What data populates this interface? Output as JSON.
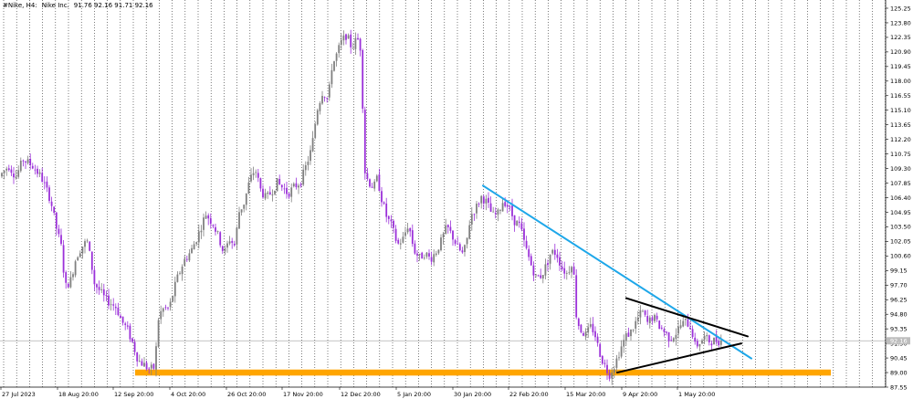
{
  "header": {
    "symbol": "#Nike, H4:",
    "description": "Nike Inc.",
    "ohlc": "91.76 92.16 91.71 92.16"
  },
  "colors": {
    "background": "#ffffff",
    "bull_candle": "#7f7f7f",
    "bear_candle": "#9b30d9",
    "upper_trendline": "#1ea7e9",
    "triangle_lines": "#000000",
    "support_zone": "#ffa500",
    "grid": "#000000",
    "price_line": "#b0b0b0",
    "price_tag": "#bdbdbd"
  },
  "chart_data": {
    "type": "candlestick",
    "ylim": [
      87.55,
      125.25
    ],
    "y_ticks": [
      "125.25",
      "123.80",
      "122.35",
      "120.90",
      "119.45",
      "118.00",
      "116.55",
      "115.10",
      "113.65",
      "112.20",
      "110.75",
      "109.30",
      "107.85",
      "106.40",
      "104.95",
      "103.50",
      "102.05",
      "100.60",
      "99.15",
      "97.70",
      "96.25",
      "94.80",
      "93.35",
      "91.90",
      "90.45",
      "89.00",
      "87.55"
    ],
    "x_ticks": [
      "27 Jul 2023",
      "18 Aug 20:00",
      "12 Sep 20:00",
      "4 Oct 20:00",
      "26 Oct 20:00",
      "17 Nov 20:00",
      "12 Dec 20:00",
      "5 Jan 20:00",
      "30 Jan 20:00",
      "22 Feb 20:00",
      "15 Mar 20:00",
      "9 Apr 20:00",
      "1 May 20:00"
    ],
    "current_price": 92.16,
    "current_price_label": "92.16",
    "grid": "vertical-dotted",
    "path": [
      [
        0,
        108.3
      ],
      [
        12,
        109.6
      ],
      [
        20,
        108.5
      ],
      [
        28,
        110.2
      ],
      [
        38,
        109.6
      ],
      [
        48,
        108.4
      ],
      [
        58,
        106.2
      ],
      [
        64,
        103.5
      ],
      [
        70,
        101.4
      ],
      [
        74,
        97.5
      ],
      [
        80,
        98.2
      ],
      [
        86,
        100.5
      ],
      [
        92,
        101.5
      ],
      [
        98,
        102.1
      ],
      [
        102,
        100.2
      ],
      [
        106,
        97.9
      ],
      [
        112,
        97.1
      ],
      [
        118,
        96.3
      ],
      [
        124,
        95.9
      ],
      [
        130,
        95.5
      ],
      [
        136,
        94.1
      ],
      [
        142,
        93.3
      ],
      [
        148,
        91.9
      ],
      [
        154,
        90.2
      ],
      [
        160,
        89.8
      ],
      [
        166,
        89.3
      ],
      [
        172,
        89.5
      ],
      [
        176,
        94.3
      ],
      [
        180,
        95.3
      ],
      [
        188,
        95.4
      ],
      [
        196,
        98.2
      ],
      [
        204,
        100.1
      ],
      [
        212,
        101.1
      ],
      [
        220,
        102.8
      ],
      [
        228,
        104.8
      ],
      [
        236,
        103.8
      ],
      [
        242,
        102.5
      ],
      [
        248,
        100.8
      ],
      [
        254,
        102.3
      ],
      [
        260,
        101.6
      ],
      [
        264,
        104.9
      ],
      [
        270,
        105.9
      ],
      [
        276,
        108.1
      ],
      [
        282,
        109.3
      ],
      [
        288,
        107.2
      ],
      [
        294,
        106.3
      ],
      [
        300,
        107.0
      ],
      [
        306,
        107.9
      ],
      [
        312,
        107.4
      ],
      [
        318,
        106.8
      ],
      [
        324,
        107.4
      ],
      [
        332,
        108.0
      ],
      [
        338,
        109.6
      ],
      [
        344,
        111.3
      ],
      [
        350,
        115.2
      ],
      [
        356,
        117.0
      ],
      [
        362,
        116.1
      ],
      [
        366,
        119.4
      ],
      [
        370,
        120.3
      ],
      [
        376,
        121.8
      ],
      [
        382,
        122.6
      ],
      [
        388,
        121.3
      ],
      [
        394,
        122.3
      ],
      [
        398,
        121.1
      ],
      [
        402,
        109.1
      ],
      [
        406,
        108.0
      ],
      [
        412,
        107.4
      ],
      [
        416,
        108.4
      ],
      [
        420,
        106.5
      ],
      [
        426,
        104.5
      ],
      [
        432,
        103.5
      ],
      [
        438,
        101.7
      ],
      [
        444,
        102.3
      ],
      [
        450,
        103.8
      ],
      [
        456,
        101.2
      ],
      [
        462,
        100.4
      ],
      [
        468,
        100.9
      ],
      [
        474,
        100.3
      ],
      [
        480,
        101.0
      ],
      [
        486,
        102.1
      ],
      [
        492,
        103.5
      ],
      [
        498,
        102.6
      ],
      [
        504,
        101.4
      ],
      [
        510,
        100.7
      ],
      [
        514,
        102.2
      ],
      [
        518,
        104.6
      ],
      [
        524,
        105.4
      ],
      [
        530,
        106.5
      ],
      [
        536,
        105.9
      ],
      [
        542,
        104.6
      ],
      [
        548,
        104.8
      ],
      [
        554,
        106.2
      ],
      [
        560,
        105.4
      ],
      [
        566,
        104.1
      ],
      [
        572,
        103.6
      ],
      [
        578,
        101.5
      ],
      [
        584,
        99.8
      ],
      [
        590,
        98.4
      ],
      [
        596,
        98.7
      ],
      [
        602,
        99.9
      ],
      [
        606,
        101.0
      ],
      [
        612,
        100.9
      ],
      [
        618,
        99.4
      ],
      [
        624,
        98.8
      ],
      [
        630,
        100.3
      ],
      [
        634,
        94.5
      ],
      [
        638,
        93.3
      ],
      [
        644,
        92.7
      ],
      [
        650,
        93.6
      ],
      [
        654,
        92.9
      ],
      [
        658,
        91.4
      ],
      [
        662,
        90.3
      ],
      [
        666,
        89.5
      ],
      [
        670,
        88.8
      ],
      [
        676,
        89.8
      ],
      [
        682,
        91.3
      ],
      [
        688,
        92.6
      ],
      [
        694,
        93.1
      ],
      [
        700,
        94.2
      ],
      [
        706,
        95.1
      ],
      [
        712,
        93.9
      ],
      [
        718,
        94.6
      ],
      [
        724,
        93.7
      ],
      [
        730,
        93.1
      ],
      [
        736,
        92.4
      ],
      [
        742,
        92.8
      ],
      [
        748,
        93.7
      ],
      [
        754,
        94.1
      ],
      [
        760,
        93.4
      ],
      [
        764,
        91.6
      ],
      [
        768,
        91.9
      ],
      [
        774,
        92.5
      ],
      [
        780,
        92.1
      ],
      [
        786,
        92.2
      ],
      [
        790,
        92.16
      ]
    ],
    "annotations": {
      "upper_trendline": [
        [
          529,
          107.6
        ],
        [
          823,
          90.4
        ]
      ],
      "triangle_upper": [
        [
          686,
          96.4
        ],
        [
          819,
          92.6
        ]
      ],
      "triangle_lower": [
        [
          676,
          89.0
        ],
        [
          812,
          91.9
        ]
      ],
      "support_zone": [
        89.3,
        88.7
      ]
    }
  }
}
